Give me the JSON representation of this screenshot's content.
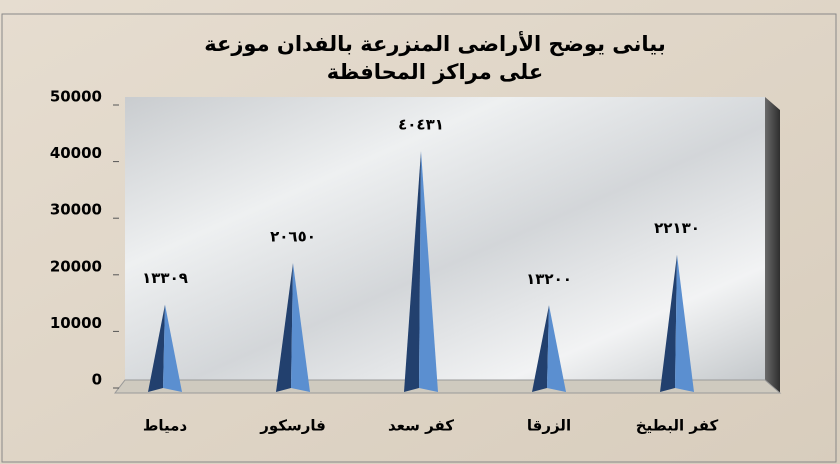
{
  "chart_data": {
    "type": "pyramid",
    "title": [
      "بيانى يوضح الأراضى المنزرعة بالفدان موزعة",
      "على مراكز المحافظة"
    ],
    "categories": [
      "دمياط",
      "فارسكور",
      "كفر سعد",
      "الزرقا",
      "كفر البطيخ"
    ],
    "values": [
      13309,
      20650,
      40431,
      13200,
      22130
    ],
    "value_labels": [
      "١٣٣٠٩",
      "٢٠٦٥٠",
      "٤٠٤٣١",
      "١٣٢٠٠",
      "٢٢١٣٠"
    ],
    "color": "#5b8fd0",
    "ylim": [
      0,
      50000
    ],
    "yticks": [
      0,
      10000,
      20000,
      30000,
      40000,
      50000
    ]
  }
}
